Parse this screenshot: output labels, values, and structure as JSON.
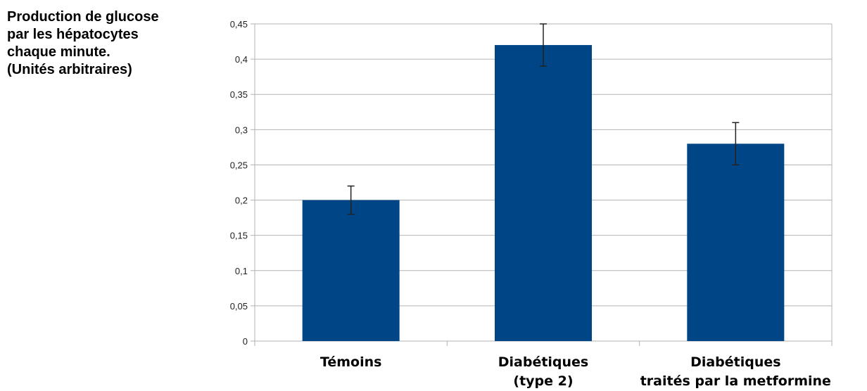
{
  "chart_data": {
    "type": "bar",
    "ylabel_lines": [
      "Production de glucose",
      "par les hépatocytes",
      "chaque minute.",
      "(Unités arbitraires)"
    ],
    "categories": [
      [
        "Témoins"
      ],
      [
        "Diabétiques",
        "(type 2)"
      ],
      [
        "Diabétiques",
        "traités par la metformine"
      ]
    ],
    "values": [
      0.2,
      0.42,
      0.28
    ],
    "error": [
      0.02,
      0.03,
      0.03
    ],
    "ylim": [
      0,
      0.45
    ],
    "yticks": [
      0,
      0.05,
      0.1,
      0.15,
      0.2,
      0.25,
      0.3,
      0.35,
      0.4,
      0.45
    ],
    "ytick_labels": [
      "0",
      "0,05",
      "0,1",
      "0,15",
      "0,2",
      "0,25",
      "0,3",
      "0,35",
      "0,4",
      "0,45"
    ],
    "grid": true,
    "bar_color": "#004586",
    "grid_color": "#b3b3b3"
  }
}
